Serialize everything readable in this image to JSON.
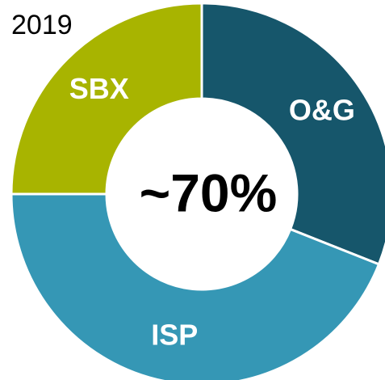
{
  "chart_data": {
    "type": "donut",
    "title": "2019",
    "center_label": "~70%",
    "categories": [
      "O&G",
      "ISP",
      "SBX"
    ],
    "values": [
      31,
      44,
      25
    ],
    "colors": [
      "#16566b",
      "#3597b5",
      "#a8b400"
    ]
  }
}
